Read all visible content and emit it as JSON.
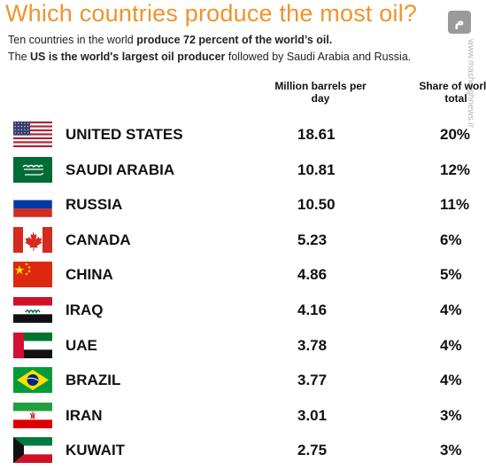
{
  "title": "Which countries produce the most oil?",
  "intro": {
    "line1_pre": "Ten countries in the world ",
    "line1_bold": "produce 72 percent of the world’s oil.",
    "line2_pre": "The ",
    "line2_bold": "US is the world's largest oil producer",
    "line2_post": " followed by Saudi Arabia and Russia."
  },
  "watermark": "www.mashreghnews.ir",
  "watermark_logo": "م",
  "columns": {
    "barrels": "Million barrels per day",
    "share": "Share of world total"
  },
  "chart_data": {
    "type": "table",
    "columns": [
      "Million barrels per day",
      "Share of world total"
    ],
    "rows": [
      {
        "country": "UNITED STATES",
        "flag": "us-flag",
        "barrels": 18.61,
        "barrels_label": "18.61",
        "share": 20,
        "share_label": "20%"
      },
      {
        "country": "SAUDI ARABIA",
        "flag": "saudi-flag",
        "barrels": 10.81,
        "barrels_label": "10.81",
        "share": 12,
        "share_label": "12%"
      },
      {
        "country": "RUSSIA",
        "flag": "russia-flag",
        "barrels": 10.5,
        "barrels_label": "10.50",
        "share": 11,
        "share_label": "11%"
      },
      {
        "country": "CANADA",
        "flag": "canada-flag",
        "barrels": 5.23,
        "barrels_label": "5.23",
        "share": 6,
        "share_label": "6%"
      },
      {
        "country": "CHINA",
        "flag": "china-flag",
        "barrels": 4.86,
        "barrels_label": "4.86",
        "share": 5,
        "share_label": "5%"
      },
      {
        "country": "IRAQ",
        "flag": "iraq-flag",
        "barrels": 4.16,
        "barrels_label": "4.16",
        "share": 4,
        "share_label": "4%"
      },
      {
        "country": "UAE",
        "flag": "uae-flag",
        "barrels": 3.78,
        "barrels_label": "3.78",
        "share": 4,
        "share_label": "4%"
      },
      {
        "country": "BRAZIL",
        "flag": "brazil-flag",
        "barrels": 3.77,
        "barrels_label": "3.77",
        "share": 4,
        "share_label": "4%"
      },
      {
        "country": "IRAN",
        "flag": "iran-flag",
        "barrels": 3.01,
        "barrels_label": "3.01",
        "share": 3,
        "share_label": "3%"
      },
      {
        "country": "KUWAIT",
        "flag": "kuwait-flag",
        "barrels": 2.75,
        "barrels_label": "2.75",
        "share": 3,
        "share_label": "3%"
      }
    ]
  }
}
